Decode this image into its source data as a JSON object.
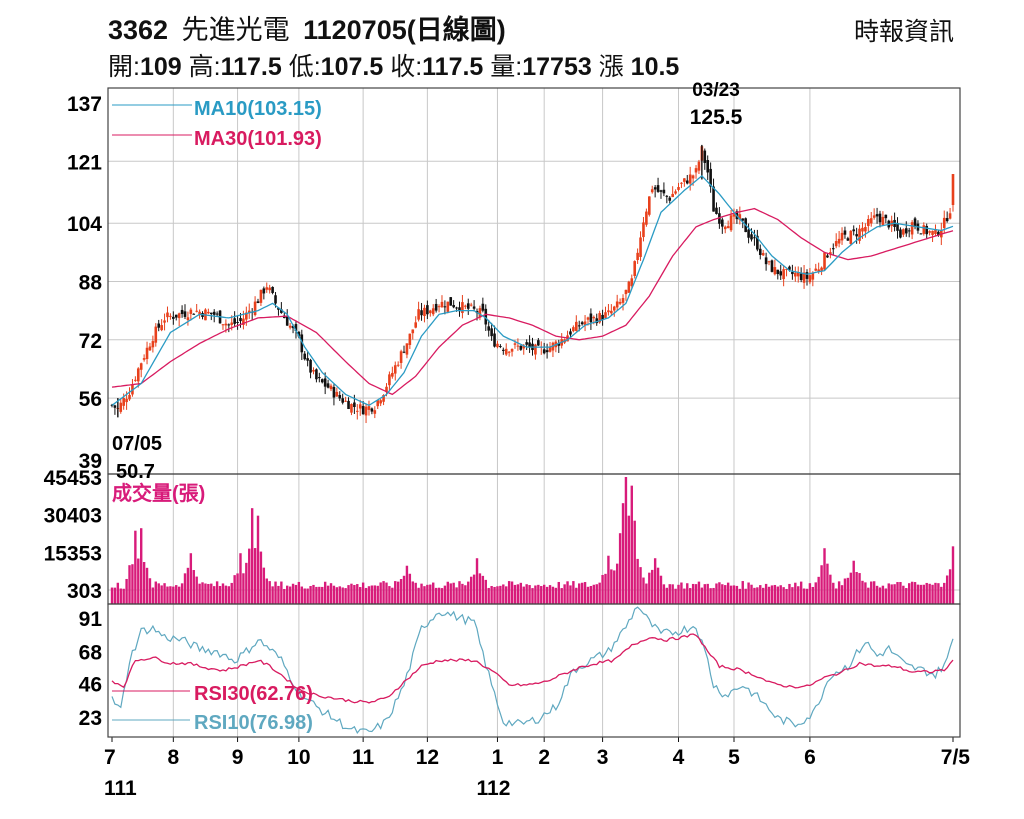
{
  "header": {
    "stock_code": "3362",
    "stock_name": "先進光電",
    "date_code": "1120705(日線圖)",
    "source": "時報資訊",
    "ohlc": [
      {
        "label": "開:",
        "value": "109"
      },
      {
        "label": "高:",
        "value": "117.5"
      },
      {
        "label": "低:",
        "value": "107.5"
      },
      {
        "label": "收:",
        "value": "117.5"
      },
      {
        "label": "量:",
        "value": "17753"
      },
      {
        "label": "漲 ",
        "value": "10.5"
      }
    ]
  },
  "colors": {
    "up": "#e8401c",
    "down": "#111111",
    "ma10": "#2a9bc4",
    "ma30": "#d81b60",
    "volume": "#d81b7a",
    "rsi30": "#d81b60",
    "rsi10": "#5fa8c0",
    "grid": "#c8c8c8"
  },
  "chart_data": [
    {
      "type": "candlestick",
      "ylim": [
        39,
        137
      ],
      "yticks": [
        "137",
        "121",
        "104",
        "88",
        "72",
        "56",
        "39"
      ],
      "grid": true,
      "legend": [
        "MA10(103.15)",
        "MA30(101.93)"
      ],
      "annotations": [
        {
          "label": "03/23",
          "value": "125.5",
          "kind": "high"
        },
        {
          "label": "07/05",
          "value": "50.7",
          "kind": "low"
        }
      ],
      "price_anchors": [
        [
          0,
          54
        ],
        [
          2,
          53
        ],
        [
          6,
          58
        ],
        [
          10,
          66
        ],
        [
          14,
          73
        ],
        [
          18,
          78
        ],
        [
          23,
          79
        ],
        [
          28,
          80
        ],
        [
          35,
          79
        ],
        [
          40,
          76
        ],
        [
          44,
          77
        ],
        [
          47,
          80
        ],
        [
          50,
          83
        ],
        [
          53,
          87
        ],
        [
          56,
          82
        ],
        [
          60,
          77
        ],
        [
          64,
          72
        ],
        [
          67,
          65
        ],
        [
          70,
          61
        ],
        [
          74,
          59
        ],
        [
          78,
          56
        ],
        [
          82,
          54
        ],
        [
          86,
          53
        ],
        [
          90,
          54
        ],
        [
          93,
          58
        ],
        [
          96,
          63
        ],
        [
          99,
          68
        ],
        [
          102,
          73
        ],
        [
          105,
          79
        ],
        [
          108,
          80
        ],
        [
          112,
          82
        ],
        [
          116,
          82
        ],
        [
          120,
          81
        ],
        [
          124,
          80
        ],
        [
          127,
          79
        ],
        [
          130,
          72
        ],
        [
          134,
          70
        ],
        [
          138,
          70
        ],
        [
          142,
          70
        ],
        [
          146,
          69
        ],
        [
          150,
          70
        ],
        [
          154,
          72
        ],
        [
          158,
          75
        ],
        [
          162,
          77
        ],
        [
          166,
          78
        ],
        [
          170,
          79
        ],
        [
          174,
          82
        ],
        [
          178,
          88
        ],
        [
          182,
          105
        ],
        [
          185,
          114
        ],
        [
          188,
          112
        ],
        [
          191,
          111
        ],
        [
          194,
          114
        ],
        [
          197,
          116
        ],
        [
          200,
          118
        ],
        [
          202,
          124
        ],
        [
          204,
          118
        ],
        [
          206,
          108
        ],
        [
          209,
          104
        ],
        [
          212,
          105
        ],
        [
          215,
          105
        ],
        [
          218,
          101
        ],
        [
          221,
          98
        ],
        [
          224,
          93
        ],
        [
          227,
          91
        ],
        [
          230,
          90
        ],
        [
          234,
          90
        ],
        [
          238,
          89
        ],
        [
          242,
          92
        ],
        [
          246,
          97
        ],
        [
          250,
          100
        ],
        [
          254,
          101
        ],
        [
          258,
          103
        ],
        [
          262,
          106
        ],
        [
          266,
          104
        ],
        [
          270,
          101
        ],
        [
          274,
          104
        ],
        [
          278,
          102
        ],
        [
          282,
          101
        ],
        [
          285,
          104
        ],
        [
          287,
          108
        ],
        [
          288,
          117.5
        ]
      ],
      "ma10": [
        [
          0,
          54
        ],
        [
          10,
          60
        ],
        [
          20,
          74
        ],
        [
          30,
          79
        ],
        [
          40,
          78
        ],
        [
          50,
          80
        ],
        [
          55,
          82
        ],
        [
          60,
          79
        ],
        [
          66,
          70
        ],
        [
          72,
          63
        ],
        [
          80,
          57
        ],
        [
          88,
          54
        ],
        [
          94,
          57
        ],
        [
          100,
          63
        ],
        [
          106,
          73
        ],
        [
          112,
          79
        ],
        [
          118,
          80
        ],
        [
          124,
          80
        ],
        [
          128,
          78
        ],
        [
          134,
          73
        ],
        [
          142,
          70
        ],
        [
          150,
          70
        ],
        [
          156,
          72
        ],
        [
          162,
          76
        ],
        [
          170,
          78
        ],
        [
          176,
          82
        ],
        [
          182,
          94
        ],
        [
          188,
          107
        ],
        [
          196,
          113
        ],
        [
          202,
          117
        ],
        [
          208,
          112
        ],
        [
          214,
          106
        ],
        [
          220,
          101
        ],
        [
          226,
          95
        ],
        [
          232,
          91
        ],
        [
          238,
          90
        ],
        [
          244,
          91
        ],
        [
          250,
          96
        ],
        [
          256,
          100
        ],
        [
          262,
          103
        ],
        [
          268,
          104
        ],
        [
          276,
          103
        ],
        [
          284,
          102
        ],
        [
          288,
          103.15
        ]
      ],
      "ma30": [
        [
          0,
          59
        ],
        [
          10,
          60
        ],
        [
          20,
          66
        ],
        [
          30,
          71
        ],
        [
          40,
          75
        ],
        [
          50,
          78
        ],
        [
          60,
          78.5
        ],
        [
          70,
          74
        ],
        [
          80,
          66
        ],
        [
          88,
          60
        ],
        [
          96,
          57
        ],
        [
          104,
          62
        ],
        [
          112,
          70
        ],
        [
          120,
          76
        ],
        [
          128,
          79
        ],
        [
          136,
          78
        ],
        [
          144,
          76
        ],
        [
          152,
          73
        ],
        [
          160,
          72
        ],
        [
          168,
          73
        ],
        [
          176,
          76
        ],
        [
          184,
          84
        ],
        [
          192,
          95
        ],
        [
          200,
          103
        ],
        [
          206,
          105
        ],
        [
          214,
          107
        ],
        [
          220,
          108
        ],
        [
          228,
          105
        ],
        [
          236,
          100
        ],
        [
          244,
          96
        ],
        [
          252,
          94
        ],
        [
          260,
          95
        ],
        [
          268,
          97
        ],
        [
          276,
          99
        ],
        [
          284,
          101
        ],
        [
          288,
          101.93
        ]
      ]
    },
    {
      "type": "bar",
      "title": "成交量(張)",
      "ylim": [
        303,
        45453
      ],
      "yticks": [
        "45453",
        "30403",
        "15353",
        "303"
      ],
      "volume_peaks": [
        {
          "i": 8,
          "v": 24000
        },
        {
          "i": 10,
          "v": 25000
        },
        {
          "i": 27,
          "v": 15000
        },
        {
          "i": 44,
          "v": 15000
        },
        {
          "i": 48,
          "v": 33000
        },
        {
          "i": 50,
          "v": 30000
        },
        {
          "i": 101,
          "v": 10000
        },
        {
          "i": 125,
          "v": 13000
        },
        {
          "i": 170,
          "v": 14000
        },
        {
          "i": 174,
          "v": 23000
        },
        {
          "i": 175,
          "v": 35000
        },
        {
          "i": 176,
          "v": 45453
        },
        {
          "i": 177,
          "v": 30000
        },
        {
          "i": 178,
          "v": 42000
        },
        {
          "i": 179,
          "v": 28000
        },
        {
          "i": 186,
          "v": 13000
        },
        {
          "i": 244,
          "v": 17000
        },
        {
          "i": 254,
          "v": 12000
        },
        {
          "i": 288,
          "v": 17753
        }
      ]
    },
    {
      "type": "line",
      "ylim": [
        10,
        100
      ],
      "yticks": [
        "91",
        "68",
        "46",
        "23"
      ],
      "legend": [
        "RSI30(62.76)",
        "RSI10(76.98)"
      ],
      "rsi10": [
        [
          0,
          35
        ],
        [
          3,
          28
        ],
        [
          6,
          62
        ],
        [
          10,
          82
        ],
        [
          14,
          84
        ],
        [
          18,
          78
        ],
        [
          24,
          76
        ],
        [
          30,
          70
        ],
        [
          36,
          68
        ],
        [
          42,
          62
        ],
        [
          46,
          68
        ],
        [
          50,
          76
        ],
        [
          54,
          70
        ],
        [
          58,
          62
        ],
        [
          64,
          40
        ],
        [
          70,
          30
        ],
        [
          76,
          22
        ],
        [
          82,
          14
        ],
        [
          88,
          12
        ],
        [
          94,
          20
        ],
        [
          100,
          45
        ],
        [
          106,
          84
        ],
        [
          112,
          96
        ],
        [
          118,
          92
        ],
        [
          124,
          88
        ],
        [
          130,
          45
        ],
        [
          134,
          20
        ],
        [
          140,
          18
        ],
        [
          146,
          22
        ],
        [
          152,
          30
        ],
        [
          158,
          55
        ],
        [
          164,
          62
        ],
        [
          170,
          68
        ],
        [
          176,
          85
        ],
        [
          180,
          100
        ],
        [
          184,
          88
        ],
        [
          188,
          80
        ],
        [
          194,
          82
        ],
        [
          200,
          86
        ],
        [
          204,
          62
        ],
        [
          206,
          45
        ],
        [
          210,
          38
        ],
        [
          216,
          45
        ],
        [
          222,
          35
        ],
        [
          228,
          22
        ],
        [
          234,
          18
        ],
        [
          240,
          25
        ],
        [
          246,
          52
        ],
        [
          252,
          58
        ],
        [
          258,
          75
        ],
        [
          262,
          65
        ],
        [
          266,
          70
        ],
        [
          272,
          58
        ],
        [
          278,
          55
        ],
        [
          282,
          52
        ],
        [
          286,
          62
        ],
        [
          288,
          76.98
        ]
      ],
      "rsi30": [
        [
          0,
          48
        ],
        [
          4,
          44
        ],
        [
          8,
          62
        ],
        [
          14,
          64
        ],
        [
          20,
          60
        ],
        [
          26,
          60
        ],
        [
          32,
          57
        ],
        [
          38,
          55
        ],
        [
          44,
          58
        ],
        [
          50,
          62
        ],
        [
          54,
          58
        ],
        [
          58,
          52
        ],
        [
          64,
          42
        ],
        [
          70,
          38
        ],
        [
          76,
          36
        ],
        [
          82,
          34
        ],
        [
          88,
          33
        ],
        [
          94,
          36
        ],
        [
          100,
          47
        ],
        [
          106,
          58
        ],
        [
          112,
          62
        ],
        [
          118,
          62
        ],
        [
          124,
          62
        ],
        [
          130,
          55
        ],
        [
          136,
          45
        ],
        [
          142,
          45
        ],
        [
          148,
          47
        ],
        [
          154,
          52
        ],
        [
          160,
          57
        ],
        [
          166,
          60
        ],
        [
          172,
          62
        ],
        [
          178,
          72
        ],
        [
          184,
          78
        ],
        [
          190,
          76
        ],
        [
          196,
          78
        ],
        [
          200,
          80
        ],
        [
          204,
          68
        ],
        [
          208,
          58
        ],
        [
          214,
          56
        ],
        [
          220,
          52
        ],
        [
          226,
          46
        ],
        [
          232,
          44
        ],
        [
          238,
          44
        ],
        [
          244,
          50
        ],
        [
          250,
          54
        ],
        [
          256,
          60
        ],
        [
          262,
          58
        ],
        [
          268,
          58
        ],
        [
          274,
          54
        ],
        [
          280,
          54
        ],
        [
          286,
          56
        ],
        [
          288,
          62.76
        ]
      ]
    }
  ],
  "xaxis": {
    "months": [
      {
        "label": "7",
        "i": 0
      },
      {
        "label": "8",
        "i": 21
      },
      {
        "label": "9",
        "i": 43
      },
      {
        "label": "10",
        "i": 64
      },
      {
        "label": "11",
        "i": 86
      },
      {
        "label": "12",
        "i": 108
      },
      {
        "label": "1",
        "i": 132
      },
      {
        "label": "2",
        "i": 148
      },
      {
        "label": "3",
        "i": 168
      },
      {
        "label": "4",
        "i": 194
      },
      {
        "label": "5",
        "i": 213
      },
      {
        "label": "6",
        "i": 239
      },
      {
        "label": "7/5",
        "i": 288
      }
    ],
    "years": [
      {
        "label": "111",
        "i": 0
      },
      {
        "label": "112",
        "i": 132
      }
    ]
  }
}
